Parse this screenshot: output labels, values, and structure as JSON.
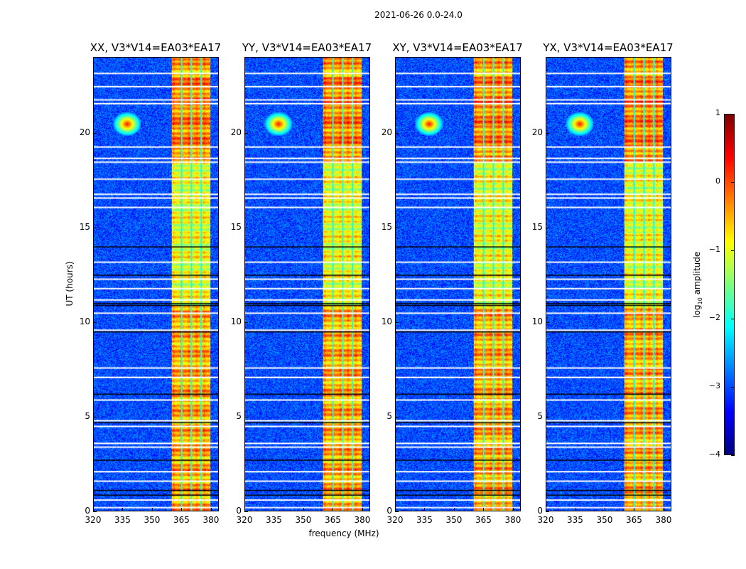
{
  "chart_data": {
    "type": "heatmap",
    "title": "2021-06-26 0.0-24.0",
    "xlabel": "frequency (MHz)",
    "ylabel": "UT (hours)",
    "xlim": [
      320,
      384
    ],
    "ylim": [
      0,
      24
    ],
    "xticks": [
      "320",
      "335",
      "350",
      "365",
      "380"
    ],
    "xtick_values": [
      320,
      335,
      350,
      365,
      380
    ],
    "yticks": [
      "0",
      "5",
      "10",
      "15",
      "20"
    ],
    "ytick_values": [
      0,
      5,
      10,
      15,
      20
    ],
    "panels": [
      {
        "title": "XX, V3*V14=EA03*EA17"
      },
      {
        "title": "YY, V3*V14=EA03*EA17"
      },
      {
        "title": "XY, V3*V14=EA03*EA17"
      },
      {
        "title": "YX, V3*V14=EA03*EA17"
      }
    ],
    "colorbar": {
      "label_main": "log",
      "label_sub": "10",
      "label_tail": " amplitude",
      "colormap": "jet",
      "range": [
        -4,
        1
      ],
      "ticks": [
        "1",
        "0",
        "−1",
        "−2",
        "−3",
        "−4"
      ],
      "tick_values": [
        1,
        0,
        -1,
        -2,
        -3,
        -4
      ]
    },
    "features": {
      "background_level": -3,
      "rfi_band_mhz": [
        360,
        380
      ],
      "rfi_band_gaps_mhz": [
        365,
        370,
        375
      ],
      "point_source": {
        "freq_mhz": 337,
        "hour": 20.5,
        "level": 0.3
      },
      "flagged_rows_white_hours": [
        23.2,
        22.5,
        21.8,
        21.6,
        19.3,
        18.7,
        18.5,
        17.6,
        16.8,
        16.6,
        16.1,
        13.2,
        12.3,
        11.8,
        11.2,
        10.5,
        9.6,
        7.6,
        7.1,
        5.9,
        4.8,
        4.5,
        3.6,
        3.4,
        2.1,
        1.6,
        0.6,
        0.2
      ],
      "flagged_rows_black_hours": [
        14.0,
        12.5,
        11.0,
        10.9,
        9.5,
        6.2,
        4.7,
        2.7,
        1.1,
        0.85
      ]
    }
  }
}
